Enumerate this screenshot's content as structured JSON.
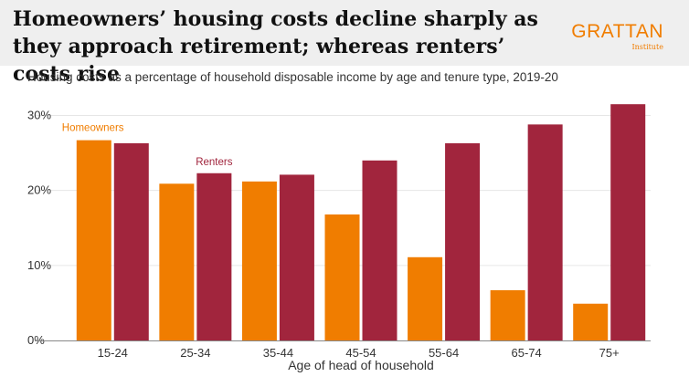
{
  "header": {
    "title": "Homeowners’ housing costs decline sharply as they approach retirement; whereas renters’ costs rise",
    "logo": "GRATTAN",
    "logo_sub": "Institute"
  },
  "subtitle": "Housing costs as a percentage of household disposable income by age and tenure type, 2019-20",
  "colors": {
    "homeowners": "#f07d00",
    "renters": "#a1253d",
    "gridline": "#e6e6e6",
    "axis": "#888888",
    "header_bg": "#efefef"
  },
  "chart_data": {
    "type": "bar",
    "categories": [
      "15-24",
      "25-34",
      "35-44",
      "45-54",
      "55-64",
      "65-74",
      "75+"
    ],
    "series": [
      {
        "name": "Homeowners",
        "values": [
          26.7,
          20.9,
          21.2,
          16.8,
          11.1,
          6.7,
          4.9
        ]
      },
      {
        "name": "Renters",
        "values": [
          26.3,
          22.3,
          22.1,
          24.0,
          26.3,
          28.8,
          31.5
        ]
      }
    ],
    "title": "",
    "xlabel": "Age of head of household",
    "ylabel": "",
    "ylim": [
      0,
      30
    ],
    "yticks": [
      "0%",
      "10%",
      "20%",
      "30%"
    ],
    "grid": true,
    "legend": "inline labels"
  }
}
